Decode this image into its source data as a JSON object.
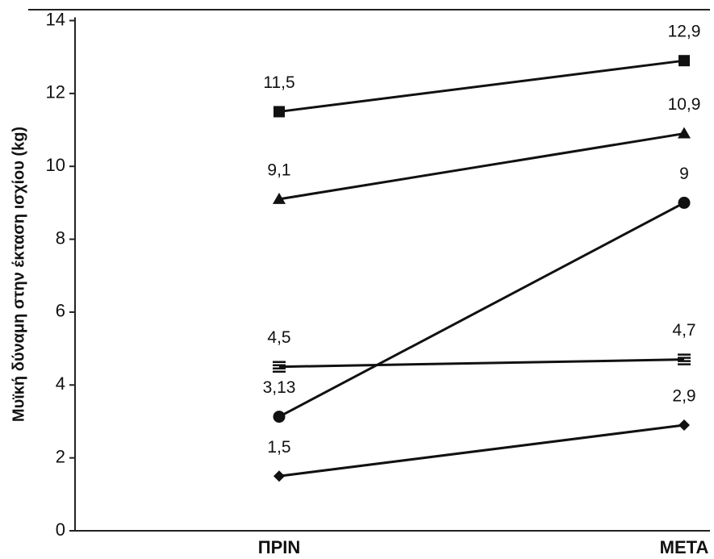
{
  "chart_data": {
    "type": "line",
    "y_label": "Μυϊκή δύναμη στην έκταση ισχίου  (kg)",
    "categories": [
      "ΠΡΙΝ",
      "ΜΕΤΑ"
    ],
    "ylim": [
      0,
      14
    ],
    "yticks": [
      0,
      2,
      4,
      6,
      8,
      10,
      12,
      14
    ],
    "grid": false,
    "series": [
      {
        "color": "#111111",
        "marker": "square",
        "values": [
          11.5,
          12.9
        ],
        "value_labels": [
          "11,5",
          "12,9"
        ]
      },
      {
        "color": "#111111",
        "marker": "triangle",
        "values": [
          9.1,
          10.9
        ],
        "value_labels": [
          "9,1",
          "10,9"
        ]
      },
      {
        "color": "#111111",
        "marker": "circle",
        "values": [
          3.13,
          9
        ],
        "value_labels": [
          "3,13",
          "9"
        ]
      },
      {
        "color": "#111111",
        "marker": "striped-square",
        "values": [
          4.5,
          4.7
        ],
        "value_labels": [
          "4,5",
          "4,7"
        ]
      },
      {
        "color": "#111111",
        "marker": "diamond",
        "values": [
          1.5,
          2.9
        ],
        "value_labels": [
          "1,5",
          "2,9"
        ]
      }
    ]
  }
}
